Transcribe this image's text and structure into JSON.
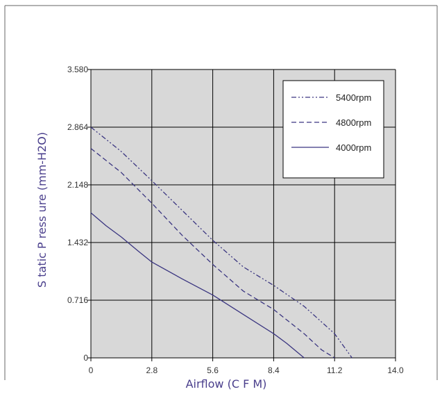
{
  "chart_data": {
    "type": "line",
    "title": "",
    "xlabel": "Airflow (C F M)",
    "ylabel": "S tatic P ress ure (mm-H2O)",
    "xlim": [
      0,
      14.0
    ],
    "ylim": [
      0,
      3.58
    ],
    "x_ticks": [
      "0",
      "2.8",
      "5.6",
      "8.4",
      "11.2",
      "14.0"
    ],
    "y_ticks": [
      "0",
      "0.716",
      "1.432",
      "2.148",
      "2.864",
      "3.580"
    ],
    "grid": true,
    "legend_position": "top-right",
    "series": [
      {
        "name": "5400rpm",
        "style": "dash-dot-dot",
        "color": "#3a3580",
        "x": [
          0,
          1.4,
          2.8,
          4.2,
          5.6,
          7.0,
          8.4,
          9.8,
          11.2,
          12.0
        ],
        "y": [
          2.864,
          2.56,
          2.2,
          1.83,
          1.46,
          1.13,
          0.9,
          0.64,
          0.3,
          0
        ]
      },
      {
        "name": "4800rpm",
        "style": "dashed",
        "color": "#3a3580",
        "x": [
          0,
          1.4,
          2.8,
          4.2,
          5.6,
          7.0,
          8.4,
          9.8,
          10.6,
          11.2
        ],
        "y": [
          2.6,
          2.3,
          1.92,
          1.52,
          1.16,
          0.83,
          0.6,
          0.3,
          0.1,
          0
        ]
      },
      {
        "name": "4000rpm",
        "style": "solid",
        "color": "#3a3580",
        "x": [
          0,
          0.7,
          1.4,
          2.2,
          2.8,
          4.2,
          5.6,
          7.0,
          8.4,
          9.0,
          9.8
        ],
        "y": [
          1.8,
          1.64,
          1.5,
          1.32,
          1.19,
          0.98,
          0.78,
          0.54,
          0.3,
          0.18,
          0
        ]
      }
    ]
  },
  "colors": {
    "plot_background": "#d8d8d8",
    "grid": "#000000",
    "line": "#3a3580",
    "axis_title": "#4a3f8c"
  }
}
